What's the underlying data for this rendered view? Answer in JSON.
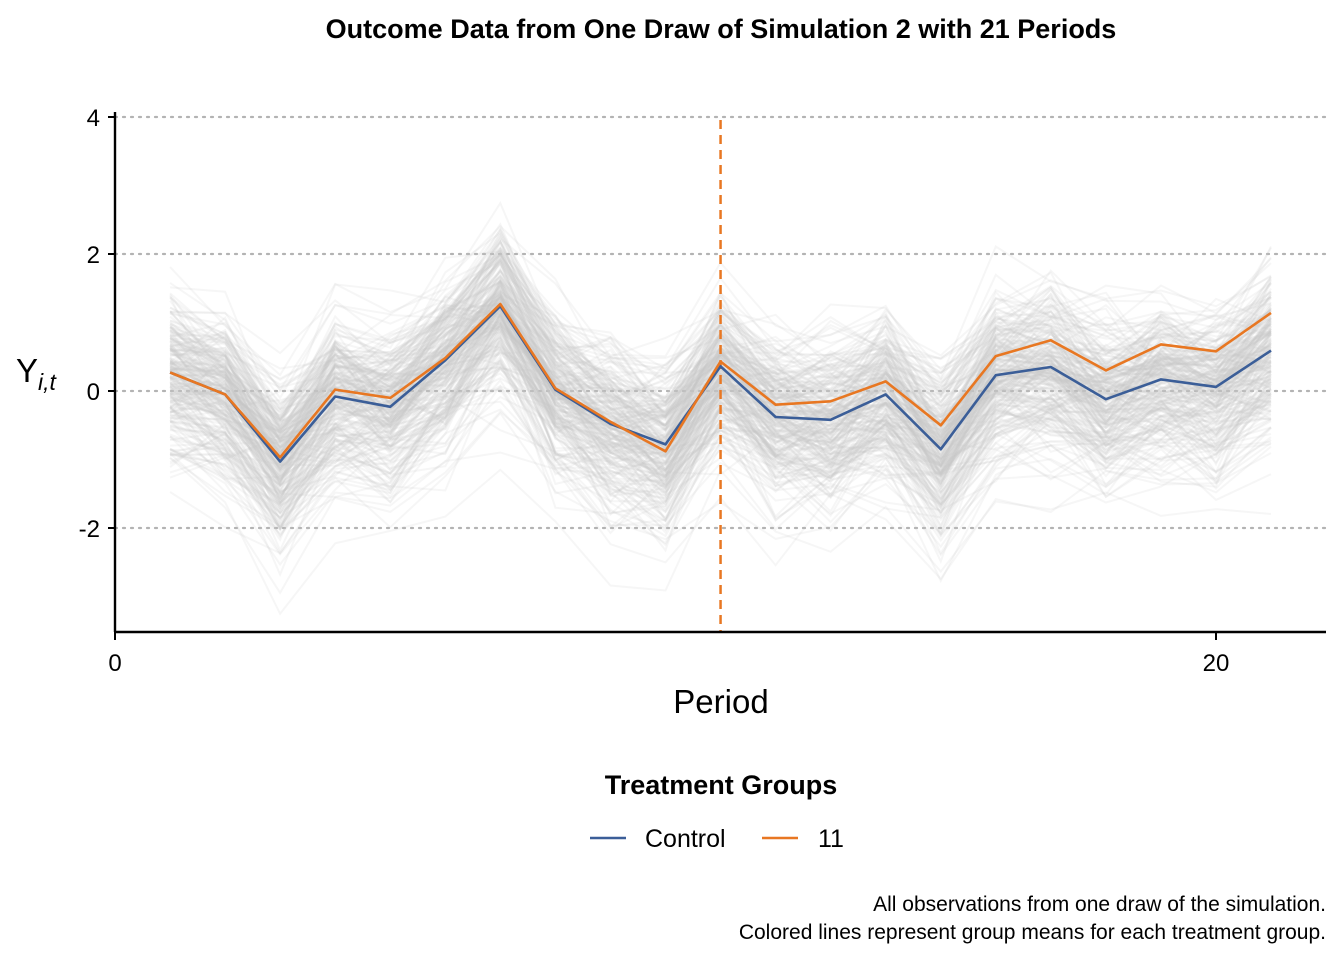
{
  "chart_data": {
    "type": "line",
    "title": "Outcome Data from One Draw of Simulation 2 with 21 Periods",
    "xlabel": "Period",
    "ylabel": "Y",
    "ylabel_subscript": "i,t",
    "xlim": [
      0,
      22
    ],
    "ylim": [
      -3.5,
      4.1
    ],
    "x_ticks": [
      "0",
      "20"
    ],
    "y_ticks": [
      "4",
      "2",
      "0",
      "-2"
    ],
    "grid": "horizontal dotted",
    "treatment_period": 11,
    "x": [
      1,
      2,
      3,
      4,
      5,
      6,
      7,
      8,
      9,
      10,
      11,
      12,
      13,
      14,
      15,
      16,
      17,
      18,
      19,
      20,
      21
    ],
    "series": [
      {
        "name": "Control",
        "color": "#3B5E98",
        "values": [
          0.27,
          -0.05,
          -1.03,
          -0.08,
          -0.23,
          0.45,
          1.24,
          0.02,
          -0.48,
          -0.78,
          0.36,
          -0.38,
          -0.42,
          -0.05,
          -0.85,
          0.23,
          0.35,
          -0.12,
          0.17,
          0.06,
          0.59
        ]
      },
      {
        "name": "11",
        "color": "#E87722",
        "values": [
          0.27,
          -0.05,
          -0.97,
          0.02,
          -0.1,
          0.48,
          1.27,
          0.04,
          -0.45,
          -0.88,
          0.43,
          -0.2,
          -0.15,
          0.14,
          -0.5,
          0.51,
          0.74,
          0.3,
          0.68,
          0.58,
          1.14
        ]
      }
    ],
    "legend": {
      "title": "Treatment Groups",
      "position": "bottom"
    },
    "caption_lines": [
      "All observations from one draw of the simulation.",
      "Colored lines represent group means for each treatment group."
    ]
  }
}
